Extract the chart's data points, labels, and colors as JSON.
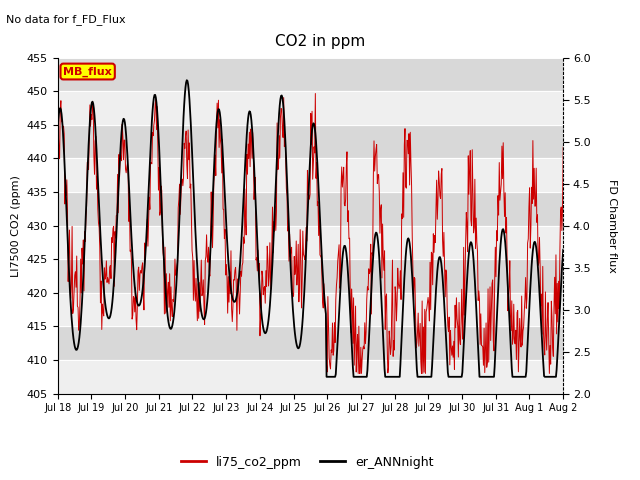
{
  "title": "CO2 in ppm",
  "top_left_text": "No data for f_FD_Flux",
  "ylabel_left": "LI7500 CO2 (ppm)",
  "ylabel_right": "FD Chamber flux",
  "ylim_left": [
    405,
    455
  ],
  "ylim_right": [
    2.0,
    6.0
  ],
  "yticks_left": [
    405,
    410,
    415,
    420,
    425,
    430,
    435,
    440,
    445,
    450,
    455
  ],
  "yticks_right": [
    2.0,
    2.5,
    3.0,
    3.5,
    4.0,
    4.5,
    5.0,
    5.5,
    6.0
  ],
  "xtick_labels": [
    "Jul 18",
    "Jul 19",
    "Jul 20",
    "Jul 21",
    "Jul 22",
    "Jul 23",
    "Jul 24",
    "Jul 25",
    "Jul 26",
    "Jul 27",
    "Jul 28",
    "Jul 29",
    "Jul 30",
    "Jul 31",
    "Aug 1",
    "Aug 2"
  ],
  "red_line_color": "#cc0000",
  "black_line_color": "#000000",
  "legend_label_red": "li75_co2_ppm",
  "legend_label_black": "er_ANNnight",
  "mb_flux_label": "MB_flux",
  "mb_flux_bg": "#ffff00",
  "mb_flux_border": "#cc0000",
  "plot_bg": "#e8e8e8",
  "band_white_color": "#f5f5f5"
}
